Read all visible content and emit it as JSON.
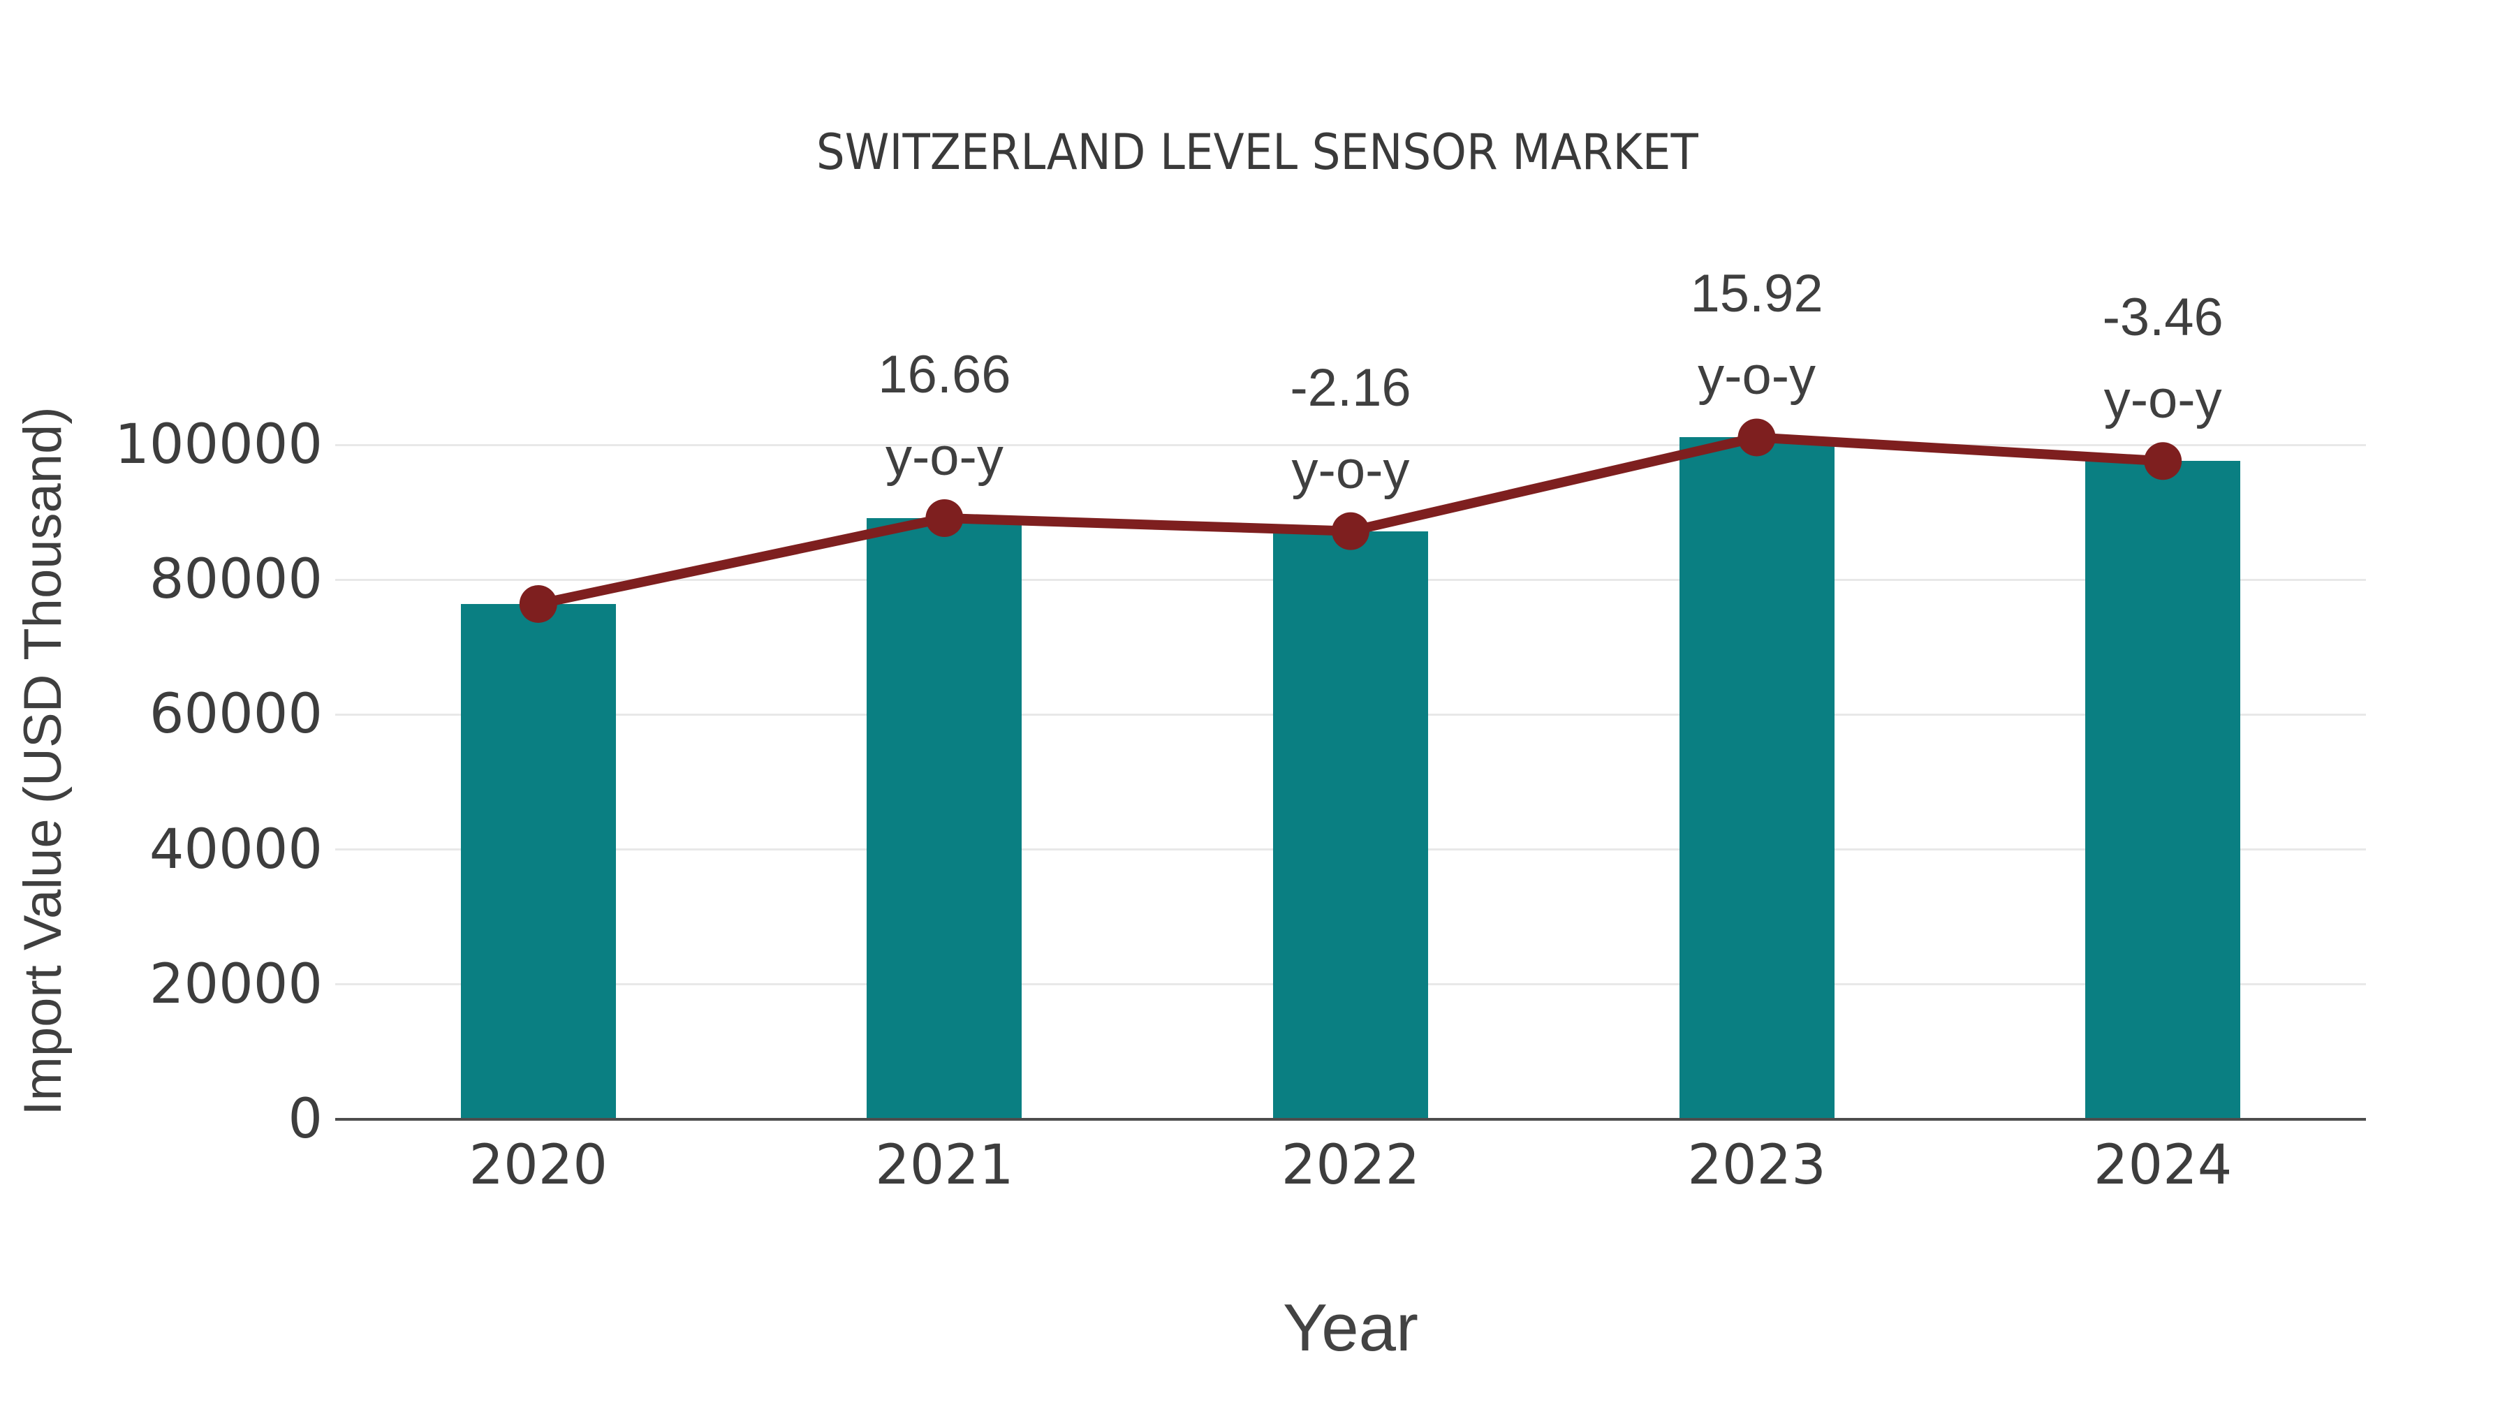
{
  "chart_data": {
    "type": "bar",
    "overlay_type": "line",
    "title": "SWITZERLAND LEVEL SENSOR MARKET",
    "xlabel": "Year",
    "ylabel": "Import Value (USD Thousand)",
    "categories": [
      "2020",
      "2021",
      "2022",
      "2023",
      "2024"
    ],
    "series": [
      {
        "name": "import-value-bars",
        "type": "bar",
        "values": [
          76400,
          89130,
          87200,
          101090,
          97590
        ]
      },
      {
        "name": "import-value-trend-line",
        "type": "line",
        "values": [
          76400,
          89130,
          87200,
          101090,
          97590
        ]
      }
    ],
    "yticks": [
      0,
      20000,
      40000,
      60000,
      80000,
      100000
    ],
    "ytick_labels": [
      "0",
      "20000",
      "40000",
      "60000",
      "80000",
      "100000"
    ],
    "ylim": [
      0,
      100000
    ],
    "grid": "horizontal",
    "legend": "none",
    "annotations": [
      {
        "category": "2021",
        "line1": "16.66",
        "line2": "y-o-y"
      },
      {
        "category": "2022",
        "line1": "-2.16",
        "line2": "y-o-y"
      },
      {
        "category": "2023",
        "line1": "15.92",
        "line2": "y-o-y"
      },
      {
        "category": "2024",
        "line1": "-3.46",
        "line2": "y-o-y"
      }
    ],
    "colors": {
      "bar": "#0a7f82",
      "line": "#7e1f1f",
      "grid": "#e8e8e8",
      "axis": "#4d4d4d",
      "text": "#3d3d3d"
    }
  }
}
